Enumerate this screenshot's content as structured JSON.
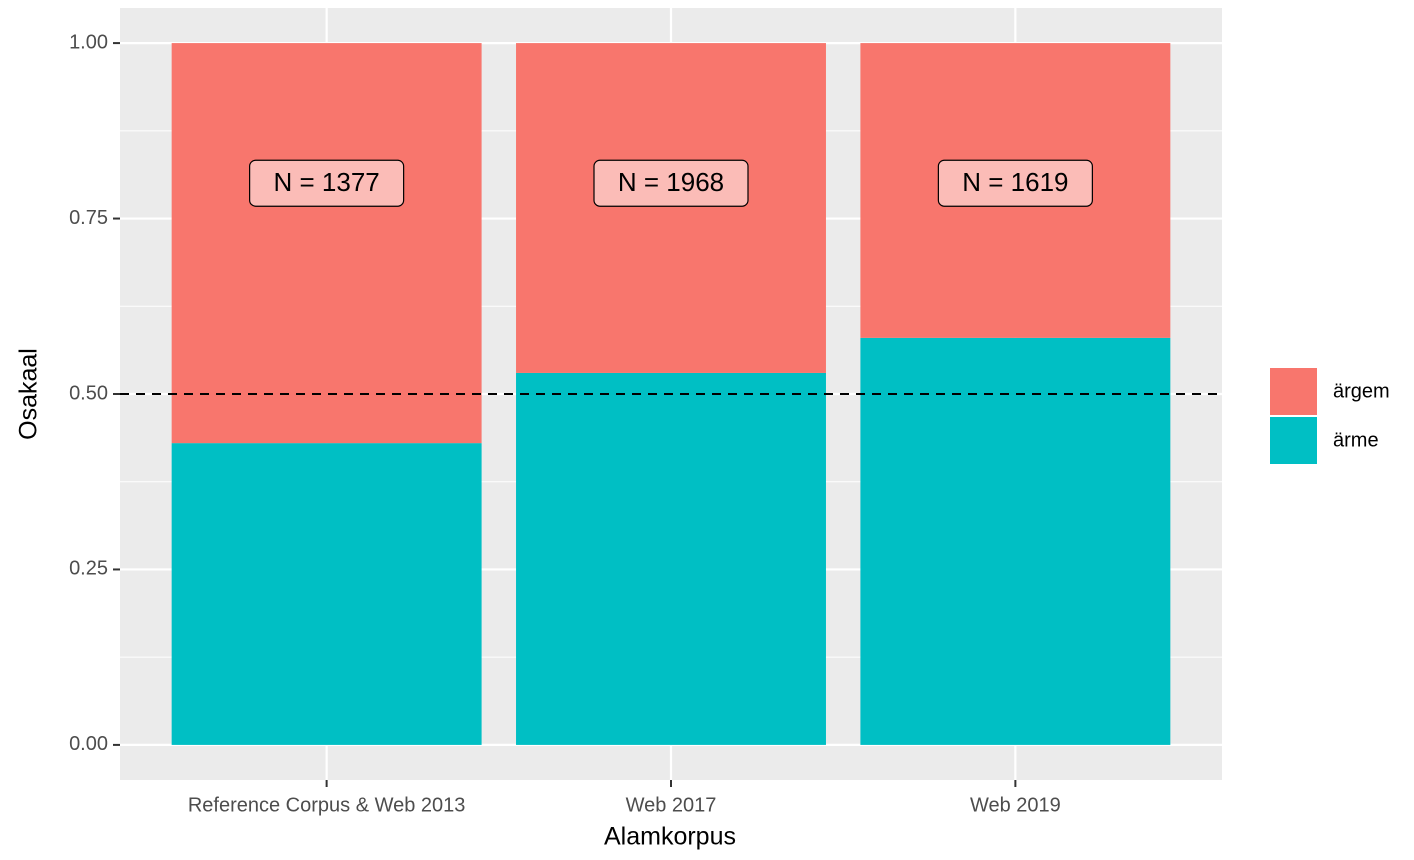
{
  "chart_data": {
    "type": "stacked_bar",
    "categories": [
      "Reference Corpus & Web 2013",
      "Web 2017",
      "Web 2019"
    ],
    "series": [
      {
        "name": "ärgem",
        "color": "#f8766d",
        "values": [
          0.57,
          0.47,
          0.42
        ]
      },
      {
        "name": "ärme",
        "color": "#00bfc4",
        "values": [
          0.43,
          0.53,
          0.58
        ]
      }
    ],
    "annotations": [
      "N = 1377",
      "N = 1968",
      "N = 1619"
    ],
    "hline": 0.5,
    "ylim": [
      -0.05,
      1.05
    ],
    "yticks": [
      {
        "value": 0,
        "label": "0.00"
      },
      {
        "value": 0.25,
        "label": "0.25"
      },
      {
        "value": 0.5,
        "label": "0.50"
      },
      {
        "value": 0.75,
        "label": "0.75"
      },
      {
        "value": 1,
        "label": "1.00"
      }
    ],
    "x_label": "Alamkorpus",
    "y_label": "Osakaal",
    "grid": true,
    "legend": "right"
  }
}
